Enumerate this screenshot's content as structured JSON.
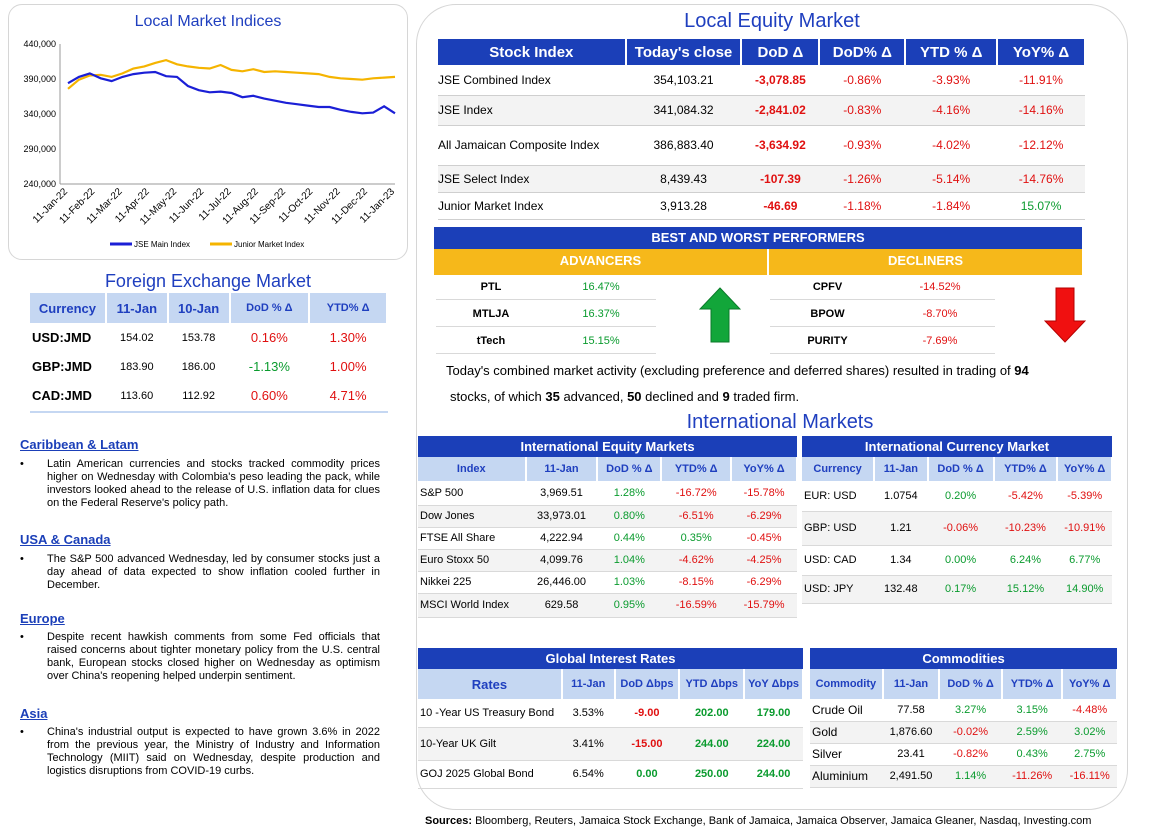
{
  "chart": {
    "title": "Local Market Indices",
    "legend": [
      "JSE Main Index",
      "Junior Market Index"
    ]
  },
  "chart_data": {
    "type": "line",
    "title": "Local Market Indices",
    "x_ticks": [
      "11-Jan-22",
      "11-Feb-22",
      "11-Mar-22",
      "11-Apr-22",
      "11-May-22",
      "11-Jun-22",
      "11-Jul-22",
      "11-Aug-22",
      "11-Sep-22",
      "11-Oct-22",
      "11-Nov-22",
      "11-Dec-22",
      "11-Jan-23"
    ],
    "y_ticks": [
      "440,000",
      "390,000",
      "340,000",
      "290,000",
      "240,000"
    ],
    "ylim": [
      240000,
      440000
    ],
    "grid": false,
    "legend_position": "bottom",
    "series": [
      {
        "name": "JSE Main Index",
        "color": "#1b1fd6",
        "values": [
          384000,
          393000,
          398000,
          391000,
          387000,
          393000,
          397000,
          399000,
          400000,
          394000,
          393000,
          380000,
          374000,
          371000,
          372000,
          370000,
          364000,
          366000,
          362000,
          359000,
          356000,
          354000,
          352000,
          350000,
          350000,
          346000,
          343000,
          341000,
          342000,
          351000,
          341000
        ]
      },
      {
        "name": "Junior Market Index",
        "color": "#f5b400",
        "values": [
          376000,
          389000,
          395000,
          396000,
          393000,
          398000,
          405000,
          408000,
          413000,
          417000,
          411000,
          408000,
          406000,
          405000,
          410000,
          403000,
          401000,
          404000,
          400000,
          401000,
          400000,
          399000,
          398000,
          397000,
          393000,
          391000,
          390000,
          389000,
          391000,
          392000,
          393000
        ]
      }
    ]
  },
  "fx": {
    "title": "Foreign Exchange Market",
    "headers": [
      "Currency",
      "11-Jan",
      "10-Jan",
      "DoD % Δ",
      "YTD% Δ"
    ],
    "rows": [
      {
        "cur": "USD:JMD",
        "a": "154.02",
        "b": "153.78",
        "dod": "0.16%",
        "ytd": "1.30%",
        "dod_s": "neg",
        "ytd_s": "neg"
      },
      {
        "cur": "GBP:JMD",
        "a": "183.90",
        "b": "186.00",
        "dod": "-1.13%",
        "ytd": "1.00%",
        "dod_s": "pos",
        "ytd_s": "neg"
      },
      {
        "cur": "CAD:JMD",
        "a": "113.60",
        "b": "112.92",
        "dod": "0.60%",
        "ytd": "4.71%",
        "dod_s": "neg",
        "ytd_s": "neg"
      }
    ]
  },
  "news": [
    {
      "heading": "Caribbean & Latam",
      "text": "Latin American currencies and stocks tracked commodity prices higher on Wednesday with Colombia's peso leading the pack, while investors looked ahead to the release of U.S. inflation data for clues on the Federal Reserve's policy path."
    },
    {
      "heading": "USA & Canada",
      "text": "The S&P 500 advanced Wednesday, led by consumer stocks just a day ahead of data expected to show inflation cooled further in December."
    },
    {
      "heading": "Europe",
      "text": "Despite recent hawkish comments from some Fed officials that raised concerns about tighter monetary policy from the U.S. central bank, European stocks closed higher on Wednesday as optimism over China's reopening helped underpin sentiment."
    },
    {
      "heading": "Asia",
      "text": "China's industrial output is expected to have grown 3.6% in 2022 from the previous year, the Ministry of Industry and Information Technology (MIIT) said on Wednesday, despite production and logistics disruptions from COVID-19 curbs."
    }
  ],
  "equity": {
    "title": "Local Equity Market",
    "headers": [
      "Stock Index",
      "Today's close",
      "DoD  Δ",
      "DoD% Δ",
      "YTD % Δ",
      "YoY% Δ"
    ],
    "rows": [
      {
        "name": "JSE Combined Index",
        "close": "354,103.21",
        "dod": "-3,078.85",
        "dodp": "-0.86%",
        "ytd": "-3.93%",
        "yoy": "-11.91%",
        "yoy_s": "neg"
      },
      {
        "name": "JSE Index",
        "close": "341,084.32",
        "dod": "-2,841.02",
        "dodp": "-0.83%",
        "ytd": "-4.16%",
        "yoy": "-14.16%",
        "yoy_s": "neg"
      },
      {
        "name": "All Jamaican Composite Index",
        "close": "386,883.40",
        "dod": "-3,634.92",
        "dodp": "-0.93%",
        "ytd": "-4.02%",
        "yoy": "-12.12%",
        "yoy_s": "neg"
      },
      {
        "name": "JSE Select Index",
        "close": "8,439.43",
        "dod": "-107.39",
        "dodp": "-1.26%",
        "ytd": "-5.14%",
        "yoy": "-14.76%",
        "yoy_s": "neg"
      },
      {
        "name": "Junior Market Index",
        "close": "3,913.28",
        "dod": "-46.69",
        "dodp": "-1.18%",
        "ytd": "-1.84%",
        "yoy": "15.07%",
        "yoy_s": "pos"
      }
    ]
  },
  "performers": {
    "title": "BEST AND WORST PERFORMERS",
    "adv_label": "ADVANCERS",
    "dec_label": "DECLINERS",
    "advancers": [
      {
        "name": "PTL",
        "val": "16.47%"
      },
      {
        "name": "MTLJA",
        "val": "16.37%"
      },
      {
        "name": "tTech",
        "val": "15.15%"
      }
    ],
    "decliners": [
      {
        "name": "CPFV",
        "val": "-14.52%"
      },
      {
        "name": "BPOW",
        "val": "-8.70%"
      },
      {
        "name": "PURITY",
        "val": "-7.69%"
      }
    ]
  },
  "activity": {
    "p1": "Today's combined market activity (excluding preference and deferred shares) resulted in trading of ",
    "total": "94",
    "p2": "stocks, of which ",
    "adv": "35",
    "p3": " advanced, ",
    "dec": "50",
    "p4": " declined and ",
    "firm": "9",
    "p5": " traded firm."
  },
  "intl_title": "International Markets",
  "intl_equity": {
    "title": "International Equity Markets",
    "headers": [
      "Index",
      "11-Jan",
      "DoD % Δ",
      "YTD% Δ",
      "YoY% Δ"
    ],
    "rows": [
      {
        "name": "S&P 500",
        "v": "3,969.51",
        "dod": "1.28%",
        "ytd": "-16.72%",
        "yoy": "-15.78%",
        "dod_s": "pos",
        "ytd_s": "neg",
        "yoy_s": "neg"
      },
      {
        "name": "Dow Jones",
        "v": "33,973.01",
        "dod": "0.80%",
        "ytd": "-6.51%",
        "yoy": "-6.29%",
        "dod_s": "pos",
        "ytd_s": "neg",
        "yoy_s": "neg"
      },
      {
        "name": "FTSE All Share",
        "v": "4,222.94",
        "dod": "0.44%",
        "ytd": "0.35%",
        "yoy": "-0.45%",
        "dod_s": "pos",
        "ytd_s": "pos",
        "yoy_s": "neg"
      },
      {
        "name": "Euro Stoxx 50",
        "v": "4,099.76",
        "dod": "1.04%",
        "ytd": "-4.62%",
        "yoy": "-4.25%",
        "dod_s": "pos",
        "ytd_s": "neg",
        "yoy_s": "neg"
      },
      {
        "name": "Nikkei 225",
        "v": "26,446.00",
        "dod": "1.03%",
        "ytd": "-8.15%",
        "yoy": "-6.29%",
        "dod_s": "pos",
        "ytd_s": "neg",
        "yoy_s": "neg"
      },
      {
        "name": "MSCI World Index",
        "v": "629.58",
        "dod": "0.95%",
        "ytd": "-16.59%",
        "yoy": "-15.79%",
        "dod_s": "pos",
        "ytd_s": "neg",
        "yoy_s": "neg"
      }
    ]
  },
  "intl_currency": {
    "title": "International Currency Market",
    "headers": [
      "Currency",
      "11-Jan",
      "DoD % Δ",
      "YTD% Δ",
      "YoY% Δ"
    ],
    "rows": [
      {
        "name": "EUR: USD",
        "v": "1.0754",
        "dod": "0.20%",
        "ytd": "-5.42%",
        "yoy": "-5.39%",
        "dod_s": "pos",
        "ytd_s": "neg",
        "yoy_s": "neg"
      },
      {
        "name": "GBP: USD",
        "v": "1.21",
        "dod": "-0.06%",
        "ytd": "-10.23%",
        "yoy": "-10.91%",
        "dod_s": "neg",
        "ytd_s": "neg",
        "yoy_s": "neg"
      },
      {
        "name": "USD: CAD",
        "v": "1.34",
        "dod": "0.00%",
        "ytd": "6.24%",
        "yoy": "6.77%",
        "dod_s": "pos",
        "ytd_s": "pos",
        "yoy_s": "pos"
      },
      {
        "name": "USD: JPY",
        "v": "132.48",
        "dod": "0.17%",
        "ytd": "15.12%",
        "yoy": "14.90%",
        "dod_s": "pos",
        "ytd_s": "pos",
        "yoy_s": "pos"
      }
    ]
  },
  "rates": {
    "title": "Global Interest Rates",
    "headers": [
      "Rates",
      "11-Jan",
      "DoD Δbps",
      "YTD Δbps",
      "YoY Δbps"
    ],
    "rows": [
      {
        "name": "10 -Year US Treasury Bond",
        "v": "3.53%",
        "dod": "-9.00",
        "ytd": "202.00",
        "yoy": "179.00",
        "dod_s": "neg"
      },
      {
        "name": "10-Year UK Gilt",
        "v": "3.41%",
        "dod": "-15.00",
        "ytd": "244.00",
        "yoy": "224.00",
        "dod_s": "neg"
      },
      {
        "name": "GOJ 2025 Global Bond",
        "v": "6.54%",
        "dod": "0.00",
        "ytd": "250.00",
        "yoy": "244.00",
        "dod_s": "pos"
      }
    ]
  },
  "commodities": {
    "title": "Commodities",
    "headers": [
      "Commodity",
      "11-Jan",
      "DoD % Δ",
      "YTD% Δ",
      "YoY% Δ"
    ],
    "rows": [
      {
        "name": "Crude Oil",
        "v": "77.58",
        "dod": "3.27%",
        "ytd": "3.15%",
        "yoy": "-4.48%",
        "dod_s": "pos",
        "ytd_s": "pos",
        "yoy_s": "neg"
      },
      {
        "name": "Gold",
        "v": "1,876.60",
        "dod": "-0.02%",
        "ytd": "2.59%",
        "yoy": "3.02%",
        "dod_s": "neg",
        "ytd_s": "pos",
        "yoy_s": "pos"
      },
      {
        "name": "Silver",
        "v": "23.41",
        "dod": "-0.82%",
        "ytd": "0.43%",
        "yoy": "2.75%",
        "dod_s": "neg",
        "ytd_s": "pos",
        "yoy_s": "pos"
      },
      {
        "name": "Aluminium",
        "v": "2,491.50",
        "dod": "1.14%",
        "ytd": "-11.26%",
        "yoy": "-16.11%",
        "dod_s": "pos",
        "ytd_s": "neg",
        "yoy_s": "neg"
      }
    ]
  },
  "sources": {
    "label": "Sources:",
    "text": " Bloomberg, Reuters, Jamaica Stock Exchange, Bank of Jamaica, Jamaica Observer, Jamaica Gleaner, Nasdaq, Investing.com"
  }
}
